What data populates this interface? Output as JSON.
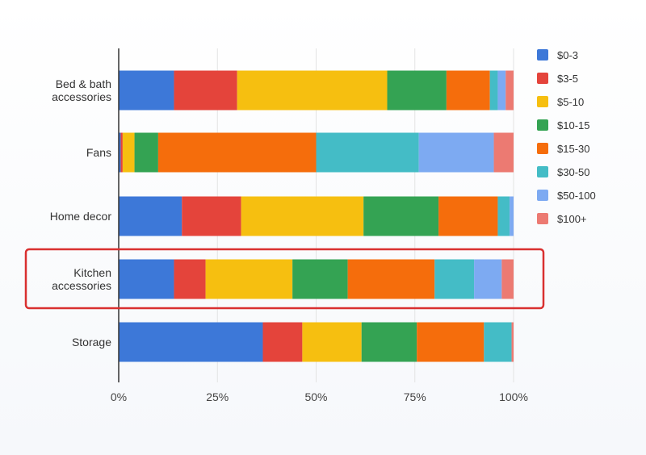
{
  "chart_data": {
    "type": "bar",
    "orientation": "horizontal",
    "stacked": true,
    "normalized": true,
    "categories": [
      [
        "Bed & bath",
        "accessories"
      ],
      [
        "Fans"
      ],
      [
        "Home decor"
      ],
      [
        "Kitchen",
        "accessories"
      ],
      [
        "Storage"
      ]
    ],
    "xticks": [
      "0%",
      "25%",
      "50%",
      "75%",
      "100%"
    ],
    "xlim": [
      0,
      100
    ],
    "grid": "vertical",
    "legend_position": "right",
    "highlighted_category_index": 3,
    "highlight_color": "#d93030",
    "series": [
      {
        "name": "$0-3",
        "color": "#3d78d8",
        "values": [
          14,
          0.5,
          16,
          14,
          36.5
        ]
      },
      {
        "name": "$3-5",
        "color": "#e4443b",
        "values": [
          16,
          0.5,
          15,
          8,
          10
        ]
      },
      {
        "name": "$5-10",
        "color": "#f6bf10",
        "values": [
          38,
          3,
          31,
          22,
          15
        ]
      },
      {
        "name": "$10-15",
        "color": "#34a353",
        "values": [
          15,
          6,
          19,
          14,
          14
        ]
      },
      {
        "name": "$15-30",
        "color": "#f56d0c",
        "values": [
          11,
          40,
          15,
          22,
          17
        ]
      },
      {
        "name": "$30-50",
        "color": "#44bcc6",
        "values": [
          2,
          26,
          3,
          10,
          7
        ]
      },
      {
        "name": "$50-100",
        "color": "#7daaf2",
        "values": [
          2,
          19,
          1,
          7,
          0
        ]
      },
      {
        "name": "$100+",
        "color": "#ec7a72",
        "values": [
          2,
          5,
          0,
          3,
          0.5
        ]
      }
    ]
  }
}
